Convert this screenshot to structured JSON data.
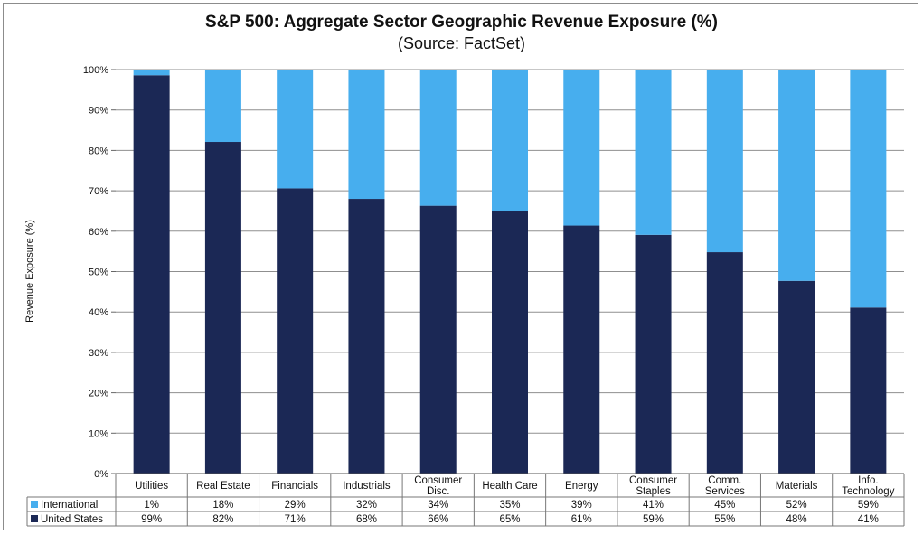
{
  "chart_data": {
    "type": "bar",
    "stacked": true,
    "title": "S&P 500: Aggregate Sector Geographic Revenue Exposure (%)",
    "subtitle": "(Source: FactSet)",
    "ylabel": "Revenue Exposure (%)",
    "ylim": [
      0,
      100
    ],
    "yticks": [
      "0%",
      "10%",
      "20%",
      "30%",
      "40%",
      "50%",
      "60%",
      "70%",
      "80%",
      "90%",
      "100%"
    ],
    "categories": [
      [
        "Utilities"
      ],
      [
        "Real Estate"
      ],
      [
        "Financials"
      ],
      [
        "Industrials"
      ],
      [
        "Consumer",
        "Disc."
      ],
      [
        "Health Care"
      ],
      [
        "Energy"
      ],
      [
        "Consumer",
        "Staples"
      ],
      [
        "Comm.",
        "Services"
      ],
      [
        "Materials"
      ],
      [
        "Info.",
        "Technology"
      ]
    ],
    "series": [
      {
        "name": "United States",
        "color": "#1b2855",
        "values": [
          98.6,
          82.1,
          70.6,
          68.0,
          66.3,
          65.0,
          61.4,
          59.1,
          54.8,
          47.7,
          41.1
        ],
        "labels": [
          "99%",
          "82%",
          "71%",
          "68%",
          "66%",
          "65%",
          "61%",
          "59%",
          "55%",
          "48%",
          "41%"
        ]
      },
      {
        "name": "International",
        "color": "#47aeee",
        "values": [
          1.4,
          17.9,
          29.4,
          32.0,
          33.7,
          35.0,
          38.6,
          40.9,
          45.2,
          52.3,
          58.9
        ],
        "labels": [
          "1%",
          "18%",
          "29%",
          "32%",
          "34%",
          "35%",
          "39%",
          "41%",
          "45%",
          "52%",
          "59%"
        ]
      }
    ],
    "table_rows_order": [
      "International",
      "United States"
    ],
    "grid": true,
    "legend": "data-table"
  }
}
